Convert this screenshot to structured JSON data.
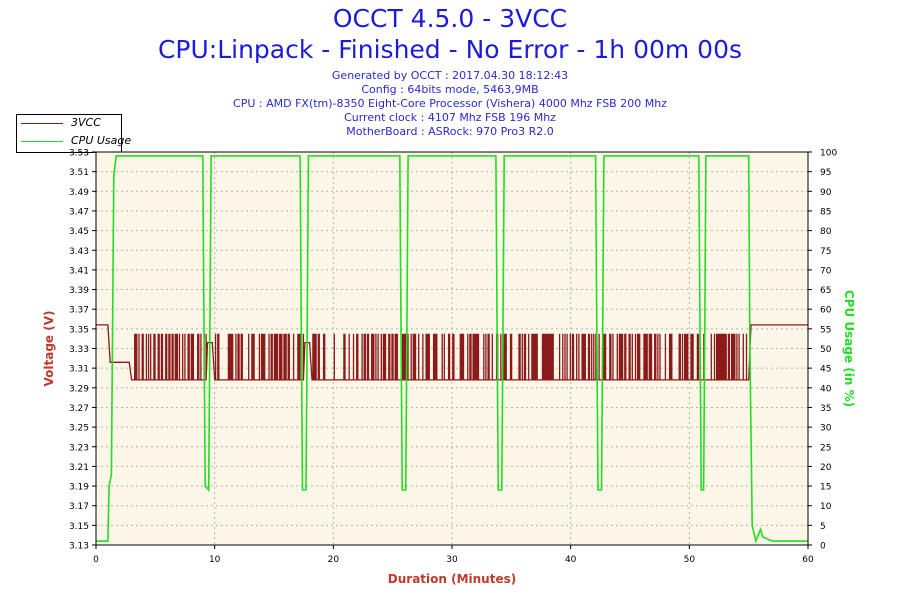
{
  "header": {
    "title": "OCCT 4.5.0 - 3VCC",
    "subtitle": "CPU:Linpack - Finished - No Error - 1h 00m 00s"
  },
  "info": {
    "generated": "Generated by OCCT : 2017.04.30 18:12:43",
    "config": "Config : 64bits mode, 5463,9MB",
    "cpu": "CPU : AMD FX(tm)-8350 Eight-Core Processor (Vishera) 4000 Mhz FSB 200 Mhz",
    "clock": "Current clock : 4107 Mhz FSB 196 Mhz",
    "motherboard": "MotherBoard : ASRock: 970 Pro3 R2.0"
  },
  "colors": {
    "voltage": "#8b1a1a",
    "cpu_usage": "#22dd22",
    "plot_bg": "#fbf6e8",
    "grid": "#b4b4b4"
  },
  "chart_data": {
    "type": "line",
    "xlabel": "Duration (Minutes)",
    "ylabel_left": "Voltage (V)",
    "ylabel_right": "CPU Usage (in %)",
    "xlim": [
      0,
      60
    ],
    "ylim_left": [
      3.13,
      3.53
    ],
    "ylim_right": [
      0,
      100
    ],
    "x_ticks": [
      "0",
      "10",
      "20",
      "30",
      "40",
      "50",
      "60"
    ],
    "y_ticks_left": [
      "3.13",
      "3.15",
      "3.17",
      "3.19",
      "3.21",
      "3.23",
      "3.25",
      "3.27",
      "3.29",
      "3.31",
      "3.33",
      "3.35",
      "3.37",
      "3.39",
      "3.41",
      "3.43",
      "3.45",
      "3.47",
      "3.49",
      "3.51",
      "3.53"
    ],
    "y_ticks_right": [
      "0",
      "5",
      "10",
      "15",
      "20",
      "25",
      "30",
      "35",
      "40",
      "45",
      "50",
      "55",
      "60",
      "65",
      "70",
      "75",
      "80",
      "85",
      "90",
      "95",
      "100"
    ],
    "legend": [
      "3VCC",
      "CPU Usage"
    ],
    "series": [
      {
        "name": "3VCC",
        "axis": "left",
        "description": "Alternates between ~3.298 V and ~3.345 V while loaded, ~3.336 V during idle dips, 3.354 V at start and end",
        "points": [
          [
            0,
            3.354
          ],
          [
            1.0,
            3.354
          ],
          [
            1.2,
            3.316
          ],
          [
            2.8,
            3.316
          ],
          [
            3.0,
            3.298
          ],
          [
            9.2,
            3.298
          ],
          [
            9.4,
            3.336
          ],
          [
            9.8,
            3.336
          ],
          [
            10.0,
            3.298
          ],
          [
            17.4,
            3.298
          ],
          [
            17.6,
            3.336
          ],
          [
            18.0,
            3.336
          ],
          [
            18.2,
            3.298
          ],
          [
            55.0,
            3.298
          ],
          [
            55.2,
            3.354
          ],
          [
            60,
            3.354
          ]
        ],
        "low": 3.298,
        "high": 3.345
      },
      {
        "name": "CPU Usage",
        "axis": "right",
        "points": [
          [
            0,
            1
          ],
          [
            1.0,
            1
          ],
          [
            1.1,
            15
          ],
          [
            1.3,
            18
          ],
          [
            1.5,
            94
          ],
          [
            1.7,
            99
          ],
          [
            9.0,
            99
          ],
          [
            9.1,
            55
          ],
          [
            9.2,
            15
          ],
          [
            9.5,
            14
          ],
          [
            9.6,
            55
          ],
          [
            9.7,
            99
          ],
          [
            17.2,
            99
          ],
          [
            17.3,
            55
          ],
          [
            17.4,
            14
          ],
          [
            17.7,
            14
          ],
          [
            17.8,
            55
          ],
          [
            17.9,
            99
          ],
          [
            25.6,
            99
          ],
          [
            25.7,
            55
          ],
          [
            25.8,
            14
          ],
          [
            26.1,
            14
          ],
          [
            26.2,
            55
          ],
          [
            26.3,
            99
          ],
          [
            33.7,
            99
          ],
          [
            33.8,
            55
          ],
          [
            33.9,
            14
          ],
          [
            34.2,
            14
          ],
          [
            34.3,
            55
          ],
          [
            34.4,
            99
          ],
          [
            42.1,
            99
          ],
          [
            42.2,
            55
          ],
          [
            42.3,
            14
          ],
          [
            42.6,
            14
          ],
          [
            42.7,
            55
          ],
          [
            42.8,
            99
          ],
          [
            50.8,
            99
          ],
          [
            50.9,
            55
          ],
          [
            51.0,
            14
          ],
          [
            51.2,
            14
          ],
          [
            51.3,
            55
          ],
          [
            51.4,
            99
          ],
          [
            55.0,
            99
          ],
          [
            55.1,
            50
          ],
          [
            55.3,
            5
          ],
          [
            55.6,
            1
          ],
          [
            56.0,
            4
          ],
          [
            56.2,
            2
          ],
          [
            57.0,
            1
          ],
          [
            60,
            1
          ]
        ]
      }
    ]
  }
}
